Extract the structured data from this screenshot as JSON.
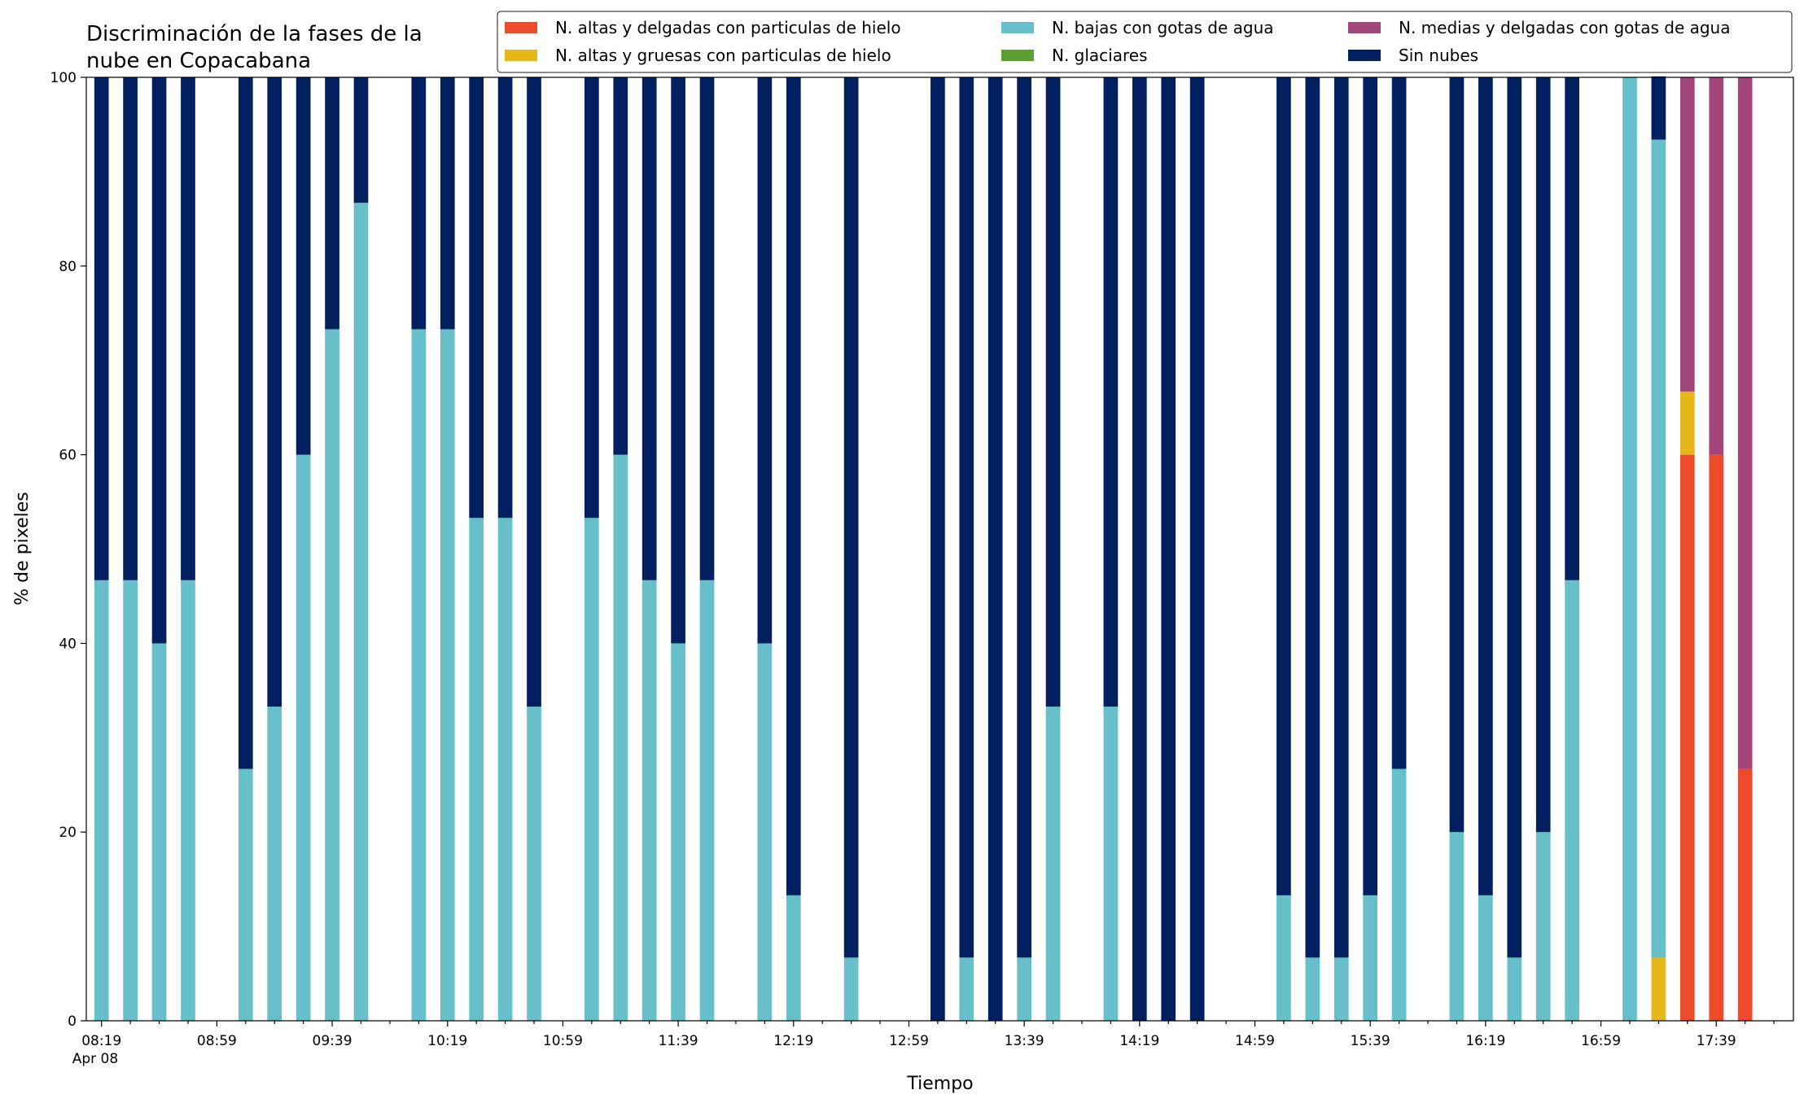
{
  "chart_data": {
    "type": "stacked_bar",
    "title": [
      "Discriminación de la fases de la",
      "nube en Copacabana"
    ],
    "xlabel": "Tiempo",
    "ylabel": "% de pixeles",
    "date_label": "Apr 08",
    "categories": [
      "08:19",
      null,
      null,
      null,
      "08:59",
      null,
      null,
      null,
      "09:39",
      null,
      null,
      null,
      "10:19",
      null,
      null,
      null,
      "10:59",
      null,
      null,
      null,
      "11:39",
      null,
      null,
      null,
      "12:19",
      null,
      null,
      null,
      "12:59",
      null,
      null,
      null,
      "13:39",
      null,
      null,
      null,
      "14:19",
      null,
      null,
      null,
      "14:59",
      null,
      null,
      null,
      "15:39",
      null,
      null,
      null,
      "16:19",
      null,
      null,
      null,
      "16:59",
      null,
      null,
      null,
      "17:39",
      null,
      null
    ],
    "series": [
      {
        "name": "N. altas y delgadas con particulas de hielo",
        "color": "#ee4a2c",
        "values": [
          0,
          0,
          0,
          0,
          null,
          0,
          0,
          0,
          0,
          0,
          null,
          0,
          0,
          0,
          0,
          0,
          null,
          0,
          0,
          0,
          0,
          0,
          null,
          0,
          0,
          null,
          0,
          null,
          null,
          0,
          0,
          0,
          0,
          0,
          null,
          0,
          0,
          0,
          0,
          null,
          null,
          0,
          0,
          0,
          0,
          0,
          null,
          0,
          0,
          0,
          0,
          0,
          null,
          0,
          0,
          60,
          60,
          26.7,
          null
        ]
      },
      {
        "name": "N. altas y gruesas con particulas de hielo",
        "color": "#e5b719",
        "values": [
          0,
          0,
          0,
          0,
          null,
          0,
          0,
          0,
          0,
          0,
          null,
          0,
          0,
          0,
          0,
          0,
          null,
          0,
          0,
          0,
          0,
          0,
          null,
          0,
          0,
          null,
          0,
          null,
          null,
          0,
          0,
          0,
          0,
          0,
          null,
          0,
          0,
          0,
          0,
          null,
          null,
          0,
          0,
          0,
          0,
          0,
          null,
          0,
          0,
          0,
          0,
          0,
          null,
          0,
          6.7,
          6.7,
          0,
          0,
          null
        ]
      },
      {
        "name": "N. bajas con gotas de agua",
        "color": "#67bfca",
        "values": [
          46.7,
          46.7,
          40,
          46.7,
          null,
          26.7,
          33.3,
          60,
          73.3,
          86.7,
          null,
          73.3,
          73.3,
          53.3,
          53.3,
          33.3,
          null,
          53.3,
          60,
          46.7,
          40,
          46.7,
          null,
          40,
          13.3,
          null,
          6.7,
          null,
          null,
          0,
          6.7,
          0,
          6.7,
          33.3,
          null,
          33.3,
          0,
          0,
          0,
          null,
          null,
          13.3,
          6.7,
          6.7,
          13.3,
          26.7,
          null,
          20,
          13.3,
          6.7,
          20,
          46.7,
          null,
          100,
          86.7,
          0,
          0,
          0,
          null
        ]
      },
      {
        "name": "N. glaciares",
        "color": "#5c9e31",
        "values": [
          0,
          0,
          0,
          0,
          null,
          0,
          0,
          0,
          0,
          0,
          null,
          0,
          0,
          0,
          0,
          0,
          null,
          0,
          0,
          0,
          0,
          0,
          null,
          0,
          0,
          null,
          0,
          null,
          null,
          0,
          0,
          0,
          0,
          0,
          null,
          0,
          0,
          0,
          0,
          null,
          null,
          0,
          0,
          0,
          0,
          0,
          null,
          0,
          0,
          0,
          0,
          0,
          null,
          0,
          0,
          0,
          0,
          0,
          null
        ]
      },
      {
        "name": "N. medias y delgadas con gotas de agua",
        "color": "#a3467c",
        "values": [
          0,
          0,
          0,
          0,
          null,
          0,
          0,
          0,
          0,
          0,
          null,
          0,
          0,
          0,
          0,
          0,
          null,
          0,
          0,
          0,
          0,
          0,
          null,
          0,
          0,
          null,
          0,
          null,
          null,
          0,
          0,
          0,
          0,
          0,
          null,
          0,
          0,
          0,
          0,
          null,
          null,
          0,
          0,
          0,
          0,
          0,
          null,
          0,
          0,
          0,
          0,
          0,
          null,
          0,
          0,
          33.3,
          40,
          73.3,
          null
        ]
      },
      {
        "name": "Sin nubes",
        "color": "#02205f",
        "values": [
          53.3,
          53.3,
          60,
          53.3,
          null,
          73.3,
          66.7,
          40,
          26.7,
          13.3,
          null,
          26.7,
          26.7,
          46.7,
          46.7,
          66.7,
          null,
          46.7,
          40,
          53.3,
          60,
          53.3,
          null,
          60,
          86.7,
          null,
          93.3,
          null,
          null,
          100,
          93.3,
          100,
          93.3,
          66.7,
          null,
          66.7,
          100,
          100,
          100,
          null,
          null,
          86.7,
          93.3,
          93.3,
          86.7,
          73.3,
          null,
          80,
          86.7,
          93.3,
          80,
          53.3,
          null,
          0,
          6.7,
          0,
          0,
          0,
          null
        ]
      }
    ],
    "ylim": [
      0,
      100
    ],
    "yticks": [
      0,
      20,
      40,
      60,
      80,
      100
    ],
    "grid": false,
    "legend": "top right"
  }
}
